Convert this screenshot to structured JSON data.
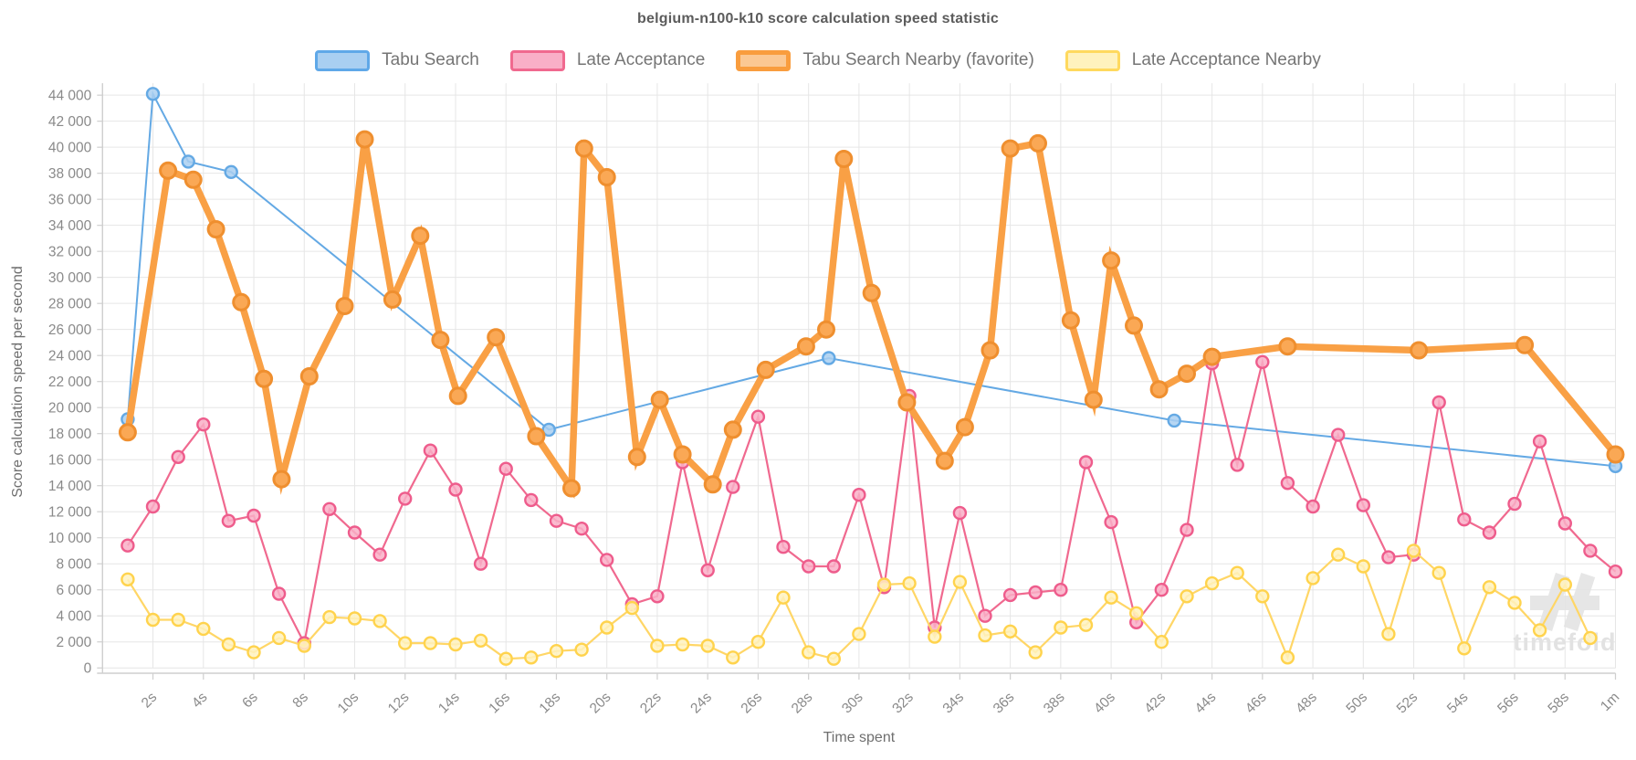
{
  "chart_data": {
    "type": "line",
    "title": "belgium-n100-k10 score calculation speed statistic",
    "ylabel": "Score calculation speed per second",
    "xlabel": "Time spent",
    "watermark": "timefold",
    "y_axis": {
      "min": 0,
      "max": 44000,
      "tick_step": 2000,
      "tick_format": "space-thousands"
    },
    "x_axis": {
      "min": 0,
      "max": 60,
      "unit": "seconds"
    },
    "x_ticks": [
      {
        "t": 2,
        "label": "2s"
      },
      {
        "t": 4,
        "label": "4s"
      },
      {
        "t": 6,
        "label": "6s"
      },
      {
        "t": 8,
        "label": "8s"
      },
      {
        "t": 10,
        "label": "10s"
      },
      {
        "t": 12,
        "label": "12s"
      },
      {
        "t": 14,
        "label": "14s"
      },
      {
        "t": 16,
        "label": "16s"
      },
      {
        "t": 18,
        "label": "18s"
      },
      {
        "t": 20,
        "label": "20s"
      },
      {
        "t": 22,
        "label": "22s"
      },
      {
        "t": 24,
        "label": "24s"
      },
      {
        "t": 26,
        "label": "26s"
      },
      {
        "t": 28,
        "label": "28s"
      },
      {
        "t": 30,
        "label": "30s"
      },
      {
        "t": 32,
        "label": "32s"
      },
      {
        "t": 34,
        "label": "34s"
      },
      {
        "t": 36,
        "label": "36s"
      },
      {
        "t": 38,
        "label": "38s"
      },
      {
        "t": 40,
        "label": "40s"
      },
      {
        "t": 42,
        "label": "42s"
      },
      {
        "t": 44,
        "label": "44s"
      },
      {
        "t": 46,
        "label": "46s"
      },
      {
        "t": 48,
        "label": "48s"
      },
      {
        "t": 50,
        "label": "50s"
      },
      {
        "t": 52,
        "label": "52s"
      },
      {
        "t": 54,
        "label": "54s"
      },
      {
        "t": 56,
        "label": "56s"
      },
      {
        "t": 58,
        "label": "58s"
      },
      {
        "t": 60,
        "label": "1m"
      }
    ],
    "grid_color": "#e6e6e6",
    "axis_color": "#cfcfcf",
    "tick_text_color": "#8a8a8a",
    "axis_title_color": "#6f6f6f",
    "series": [
      {
        "name": "Tabu Search",
        "line_color": "#64a9e4",
        "marker_fill": "#a9cff1",
        "marker_stroke": "#64a9e4",
        "line_width": 2,
        "marker_radius": 6.5,
        "favorite": false,
        "points": [
          [
            1,
            19100
          ],
          [
            2,
            44100
          ],
          [
            3.4,
            38900
          ],
          [
            5.1,
            38100
          ],
          [
            17.7,
            18300
          ],
          [
            28.8,
            23800
          ],
          [
            42.5,
            19000
          ],
          [
            60,
            15500
          ]
        ]
      },
      {
        "name": "Late Acceptance",
        "line_color": "#f0698f",
        "marker_fill": "#f9afc7",
        "marker_stroke": "#ee5c8c",
        "line_width": 2.2,
        "marker_radius": 6.5,
        "favorite": false,
        "points": [
          [
            1,
            9400
          ],
          [
            2,
            12400
          ],
          [
            3,
            16200
          ],
          [
            4,
            18700
          ],
          [
            5,
            11300
          ],
          [
            6,
            11700
          ],
          [
            7,
            5700
          ],
          [
            8,
            1900
          ],
          [
            9,
            12200
          ],
          [
            10,
            10400
          ],
          [
            11,
            8700
          ],
          [
            12,
            13000
          ],
          [
            13,
            16700
          ],
          [
            14,
            13700
          ],
          [
            15,
            8000
          ],
          [
            16,
            15300
          ],
          [
            17,
            12900
          ],
          [
            18,
            11300
          ],
          [
            19,
            10700
          ],
          [
            20,
            8300
          ],
          [
            21,
            4900
          ],
          [
            22,
            5500
          ],
          [
            23,
            15800
          ],
          [
            24,
            7500
          ],
          [
            25,
            13900
          ],
          [
            26,
            19300
          ],
          [
            27,
            9300
          ],
          [
            28,
            7800
          ],
          [
            29,
            7800
          ],
          [
            30,
            13300
          ],
          [
            31,
            6200
          ],
          [
            32,
            20900
          ],
          [
            33,
            3100
          ],
          [
            34,
            11900
          ],
          [
            35,
            4000
          ],
          [
            36,
            5600
          ],
          [
            37,
            5800
          ],
          [
            38,
            6000
          ],
          [
            39,
            15800
          ],
          [
            40,
            11200
          ],
          [
            41,
            3500
          ],
          [
            42,
            6000
          ],
          [
            43,
            10600
          ],
          [
            44,
            23400
          ],
          [
            45,
            15600
          ],
          [
            46,
            23500
          ],
          [
            47,
            14200
          ],
          [
            48,
            12400
          ],
          [
            49,
            17900
          ],
          [
            50,
            12500
          ],
          [
            51,
            8500
          ],
          [
            52,
            8700
          ],
          [
            53,
            20400
          ],
          [
            54,
            11400
          ],
          [
            55,
            10400
          ],
          [
            56,
            12600
          ],
          [
            57,
            17400
          ],
          [
            58,
            11100
          ],
          [
            59,
            9000
          ],
          [
            60,
            7400
          ]
        ]
      },
      {
        "name": "Tabu Search Nearby (favorite)",
        "line_color": "#f9a045",
        "marker_fill": "#faa855",
        "marker_stroke": "#ef8f2f",
        "line_width": 7.5,
        "marker_radius": 8.5,
        "favorite": true,
        "points": [
          [
            1,
            18100
          ],
          [
            2.6,
            38200
          ],
          [
            3.6,
            37500
          ],
          [
            4.5,
            33700
          ],
          [
            5.5,
            28100
          ],
          [
            6.4,
            22200
          ],
          [
            7.1,
            14500
          ],
          [
            8.2,
            22400
          ],
          [
            9.6,
            27800
          ],
          [
            10.4,
            40600
          ],
          [
            11.5,
            28300
          ],
          [
            12.6,
            33200
          ],
          [
            13.4,
            25200
          ],
          [
            14.1,
            20900
          ],
          [
            15.6,
            25400
          ],
          [
            17.2,
            17800
          ],
          [
            18.6,
            13800
          ],
          [
            19.1,
            39900
          ],
          [
            20,
            37700
          ],
          [
            21.2,
            16200
          ],
          [
            22.1,
            20600
          ],
          [
            23,
            16400
          ],
          [
            24.2,
            14100
          ],
          [
            25,
            18300
          ],
          [
            26.3,
            22900
          ],
          [
            27.9,
            24700
          ],
          [
            28.7,
            26000
          ],
          [
            29.4,
            39100
          ],
          [
            30.5,
            28800
          ],
          [
            31.9,
            20400
          ],
          [
            33.4,
            15900
          ],
          [
            34.2,
            18500
          ],
          [
            35.2,
            24400
          ],
          [
            36,
            39900
          ],
          [
            37.1,
            40300
          ],
          [
            38.4,
            26700
          ],
          [
            39.3,
            20600
          ],
          [
            40,
            31300
          ],
          [
            40.9,
            26300
          ],
          [
            41.9,
            21400
          ],
          [
            43,
            22600
          ],
          [
            44,
            23900
          ],
          [
            47,
            24700
          ],
          [
            52.2,
            24400
          ],
          [
            56.4,
            24800
          ],
          [
            60,
            16400
          ]
        ]
      },
      {
        "name": "Late Acceptance Nearby",
        "line_color": "#ffd666",
        "marker_fill": "#fff2be",
        "marker_stroke": "#ffd34d",
        "line_width": 2.2,
        "marker_radius": 6.5,
        "favorite": false,
        "points": [
          [
            1,
            6800
          ],
          [
            2,
            3700
          ],
          [
            3,
            3700
          ],
          [
            4,
            3000
          ],
          [
            5,
            1800
          ],
          [
            6,
            1200
          ],
          [
            7,
            2300
          ],
          [
            8,
            1700
          ],
          [
            9,
            3900
          ],
          [
            10,
            3800
          ],
          [
            11,
            3600
          ],
          [
            12,
            1900
          ],
          [
            13,
            1900
          ],
          [
            14,
            1800
          ],
          [
            15,
            2100
          ],
          [
            16,
            700
          ],
          [
            17,
            800
          ],
          [
            18,
            1300
          ],
          [
            19,
            1400
          ],
          [
            20,
            3100
          ],
          [
            21,
            4600
          ],
          [
            22,
            1700
          ],
          [
            23,
            1800
          ],
          [
            24,
            1700
          ],
          [
            25,
            800
          ],
          [
            26,
            2000
          ],
          [
            27,
            5400
          ],
          [
            28,
            1200
          ],
          [
            29,
            700
          ],
          [
            30,
            2600
          ],
          [
            31,
            6400
          ],
          [
            32,
            6500
          ],
          [
            33,
            2400
          ],
          [
            34,
            6600
          ],
          [
            35,
            2500
          ],
          [
            36,
            2800
          ],
          [
            37,
            1200
          ],
          [
            38,
            3100
          ],
          [
            39,
            3300
          ],
          [
            40,
            5400
          ],
          [
            41,
            4200
          ],
          [
            42,
            2000
          ],
          [
            43,
            5500
          ],
          [
            44,
            6500
          ],
          [
            45,
            7300
          ],
          [
            46,
            5500
          ],
          [
            47,
            800
          ],
          [
            48,
            6900
          ],
          [
            49,
            8700
          ],
          [
            50,
            7800
          ],
          [
            51,
            2600
          ],
          [
            52,
            9000
          ],
          [
            53,
            7300
          ],
          [
            54,
            1500
          ],
          [
            55,
            6200
          ],
          [
            56,
            5000
          ],
          [
            57,
            2900
          ],
          [
            58,
            6400
          ],
          [
            59,
            2300
          ]
        ]
      }
    ],
    "legend_swatches": [
      {
        "fill": "#a9cff1",
        "border": "#5fa8e8",
        "border_width": 3
      },
      {
        "fill": "#f9afc7",
        "border": "#f0698f",
        "border_width": 3
      },
      {
        "fill": "#fbc893",
        "border": "#f99d3e",
        "border_width": 5
      },
      {
        "fill": "#fff2be",
        "border": "#ffd95e",
        "border_width": 3
      }
    ]
  }
}
